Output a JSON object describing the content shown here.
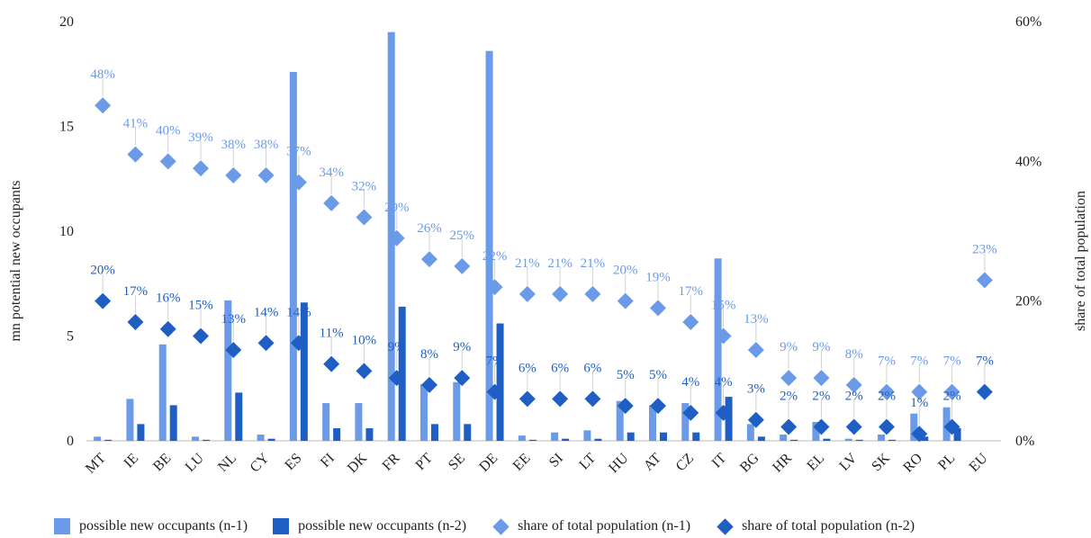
{
  "chart_data": {
    "type": "bar",
    "categories": [
      "MT",
      "IE",
      "BE",
      "LU",
      "NL",
      "CY",
      "ES",
      "FI",
      "DK",
      "FR",
      "PT",
      "SE",
      "DE",
      "EE",
      "SI",
      "LT",
      "HU",
      "AT",
      "CZ",
      "IT",
      "BG",
      "HR",
      "EL",
      "LV",
      "SK",
      "RO",
      "PL",
      "EU"
    ],
    "series": [
      {
        "name": "possible new occupants (n-1)",
        "axis": "left",
        "kind": "bar",
        "values": [
          0.2,
          2.0,
          4.6,
          0.2,
          6.7,
          0.3,
          17.6,
          1.8,
          1.8,
          19.5,
          2.7,
          2.8,
          18.6,
          0.25,
          0.4,
          0.5,
          1.9,
          1.7,
          1.8,
          8.7,
          0.8,
          0.3,
          0.9,
          0.1,
          0.3,
          1.3,
          1.6,
          null
        ]
      },
      {
        "name": "possible new occupants (n-2)",
        "axis": "right-bar",
        "kind": "bar",
        "values": [
          0.05,
          0.8,
          1.7,
          0.05,
          2.3,
          0.1,
          6.6,
          0.6,
          0.6,
          6.4,
          0.8,
          0.8,
          5.6,
          0.05,
          0.1,
          0.1,
          0.4,
          0.4,
          0.4,
          2.1,
          0.2,
          0.05,
          0.1,
          0.05,
          0.05,
          0.2,
          0.6,
          null
        ]
      },
      {
        "name": "share of total population (n-1)",
        "axis": "right",
        "kind": "diamond",
        "values": [
          48,
          41,
          40,
          39,
          38,
          38,
          37,
          34,
          32,
          29,
          26,
          25,
          22,
          21,
          21,
          21,
          20,
          19,
          17,
          15,
          13,
          9,
          9,
          8,
          7,
          7,
          7,
          23
        ],
        "labels": [
          "48%",
          "41%",
          "40%",
          "39%",
          "38%",
          "38%",
          "37%",
          "34%",
          "32%",
          "29%",
          "26%",
          "25%",
          "22%",
          "21%",
          "21%",
          "21%",
          "20%",
          "19%",
          "17%",
          "15%",
          "13%",
          "9%",
          "9%",
          "8%",
          "7%",
          "7%",
          "7%",
          "23%"
        ]
      },
      {
        "name": "share of total population (n-2)",
        "axis": "right",
        "kind": "diamond",
        "values": [
          20,
          17,
          16,
          15,
          13,
          14,
          14,
          11,
          10,
          9,
          8,
          9,
          7,
          6,
          6,
          6,
          5,
          5,
          4,
          4,
          3,
          2,
          2,
          2,
          2,
          1,
          2,
          7
        ],
        "labels": [
          "20%",
          "17%",
          "16%",
          "15%",
          "13%",
          "14%",
          "14%",
          "11%",
          "10%",
          "9%",
          "8%",
          "9%",
          "7%",
          "6%",
          "6%",
          "6%",
          "5%",
          "5%",
          "4%",
          "4%",
          "3%",
          "2%",
          "2%",
          "2%",
          "2%",
          "1%",
          "2%",
          "7%"
        ]
      }
    ],
    "ylabel": "mn potential new occupants",
    "y2label": "share of total population",
    "ylim": [
      0,
      20
    ],
    "y2lim": [
      0,
      60
    ],
    "yticks": [
      "0",
      "5",
      "10",
      "15",
      "20"
    ],
    "y2ticks": [
      "0%",
      "20%",
      "40%",
      "60%"
    ],
    "grid": false,
    "legend_position": "bottom",
    "colors": {
      "n1_bar": "#6b9ae8",
      "n2_bar": "#1f5fc4",
      "n1_diamond": "#6b9ae8",
      "n2_diamond": "#1f5fc4"
    }
  },
  "legend": [
    {
      "label": "possible new occupants (n-1)",
      "shape": "square",
      "color": "#6b9ae8"
    },
    {
      "label": "possible new occupants (n-2)",
      "shape": "square",
      "color": "#1f5fc4"
    },
    {
      "label": "share of total population (n-1)",
      "shape": "diamond",
      "color": "#6b9ae8"
    },
    {
      "label": "share of total population (n-2)",
      "shape": "diamond",
      "color": "#1f5fc4"
    }
  ]
}
